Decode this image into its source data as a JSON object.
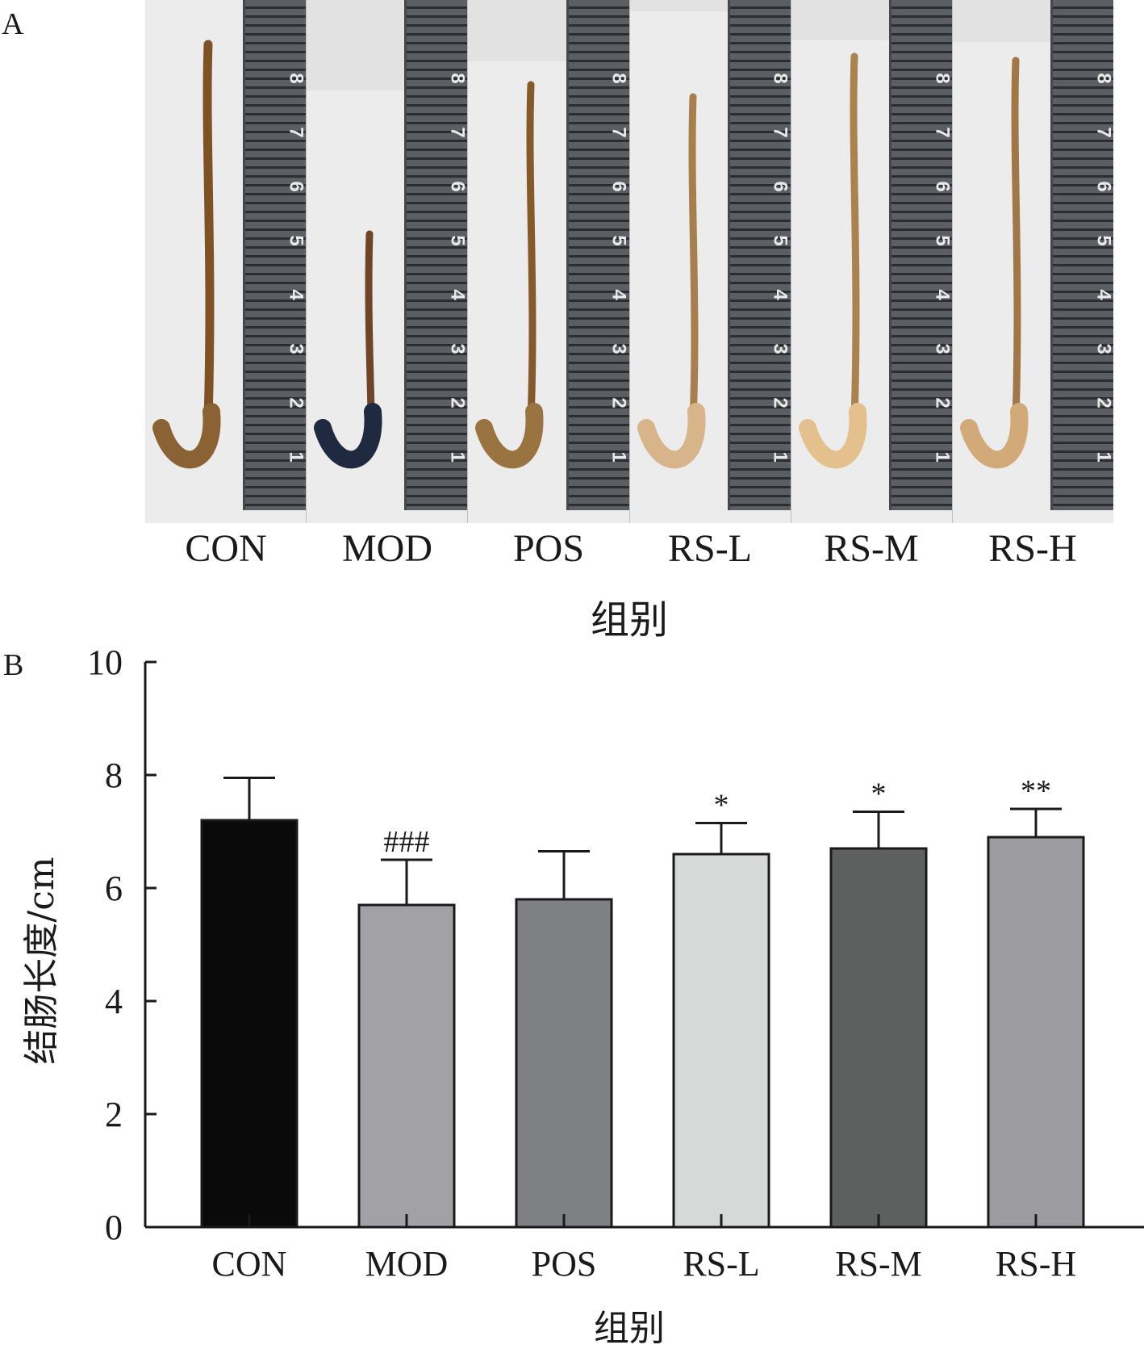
{
  "panel_a": {
    "letter": "A",
    "groups": [
      "CON",
      "MOD",
      "POS",
      "RS-L",
      "RS-M",
      "RS-H"
    ],
    "x_title": "组别",
    "ruler_numbers": [
      "1",
      "2",
      "3",
      "4",
      "5",
      "6",
      "7",
      "8"
    ]
  },
  "panel_b": {
    "letter": "B"
  },
  "chart_data": {
    "type": "bar",
    "categories": [
      "CON",
      "MOD",
      "POS",
      "RS-L",
      "RS-M",
      "RS-H"
    ],
    "values": [
      7.2,
      5.7,
      5.8,
      6.6,
      6.7,
      6.9
    ],
    "error_upper": [
      0.75,
      0.8,
      0.85,
      0.55,
      0.65,
      0.5
    ],
    "significance": [
      "",
      "###",
      "",
      "*",
      "*",
      "**"
    ],
    "colors": [
      "#0a0a0a",
      "#a1a1a6",
      "#7f8084",
      "#d7d8d8",
      "#5e6060",
      "#9c9ca1"
    ],
    "xlabel": "组别",
    "ylabel": "结肠长度/cm",
    "ylim": [
      0,
      10
    ],
    "yticks": [
      0,
      2,
      4,
      6,
      8,
      10
    ],
    "grid": false,
    "legend": "none"
  }
}
